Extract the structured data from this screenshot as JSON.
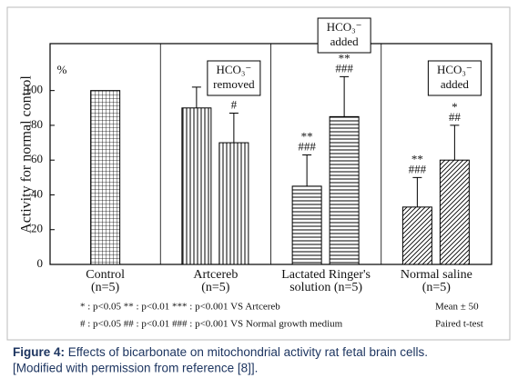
{
  "chart_data": {
    "type": "bar",
    "y_unit": "%",
    "ylabel": "Activity for normal control",
    "ylim": [
      0,
      127
    ],
    "yticks": [
      0,
      20,
      40,
      60,
      80,
      100
    ],
    "categories": [
      [
        "Control",
        "(n=5)"
      ],
      [
        "Artcereb",
        "(n=5)"
      ],
      [
        "Lactated Ringer's",
        "solution (n=5)"
      ],
      [
        "Normal saline",
        "(n=5)"
      ]
    ],
    "patterns": [
      "grid",
      "vertical",
      "horizontal",
      "diagonal"
    ],
    "series": [
      {
        "color": "#000000",
        "values": [
          100,
          90,
          45,
          33
        ],
        "errors": [
          null,
          12,
          18,
          17
        ],
        "significance": [
          null,
          null,
          [
            "**",
            "###"
          ],
          [
            "**",
            "###"
          ]
        ]
      },
      {
        "color": "#000000",
        "values": [
          null,
          70,
          85,
          60
        ],
        "errors": [
          null,
          17,
          23,
          20
        ],
        "significance": [
          null,
          [
            "#"
          ],
          [
            "**",
            "###"
          ],
          [
            "*",
            "##"
          ]
        ],
        "boxes": [
          null,
          [
            "HCO₃⁻",
            "removed"
          ],
          [
            "HCO₃⁻",
            "added"
          ],
          [
            "HCO₃⁻",
            "added"
          ]
        ]
      }
    ],
    "footnotes": [
      [
        "* : p<0.05   ** : p<0.01   *** : p<0.001 VS Artcereb",
        "Mean ± 50"
      ],
      [
        "# : p<0.05  ## : p<0.01  ### : p<0.001 VS Normal growth medium",
        "Paired t-test"
      ]
    ]
  },
  "caption": {
    "label": "Figure 4:",
    "text": "Effects of bicarbonate on mitochondrial activity rat fetal brain cells.",
    "text2": "[Modified with permission from reference [8]]."
  }
}
